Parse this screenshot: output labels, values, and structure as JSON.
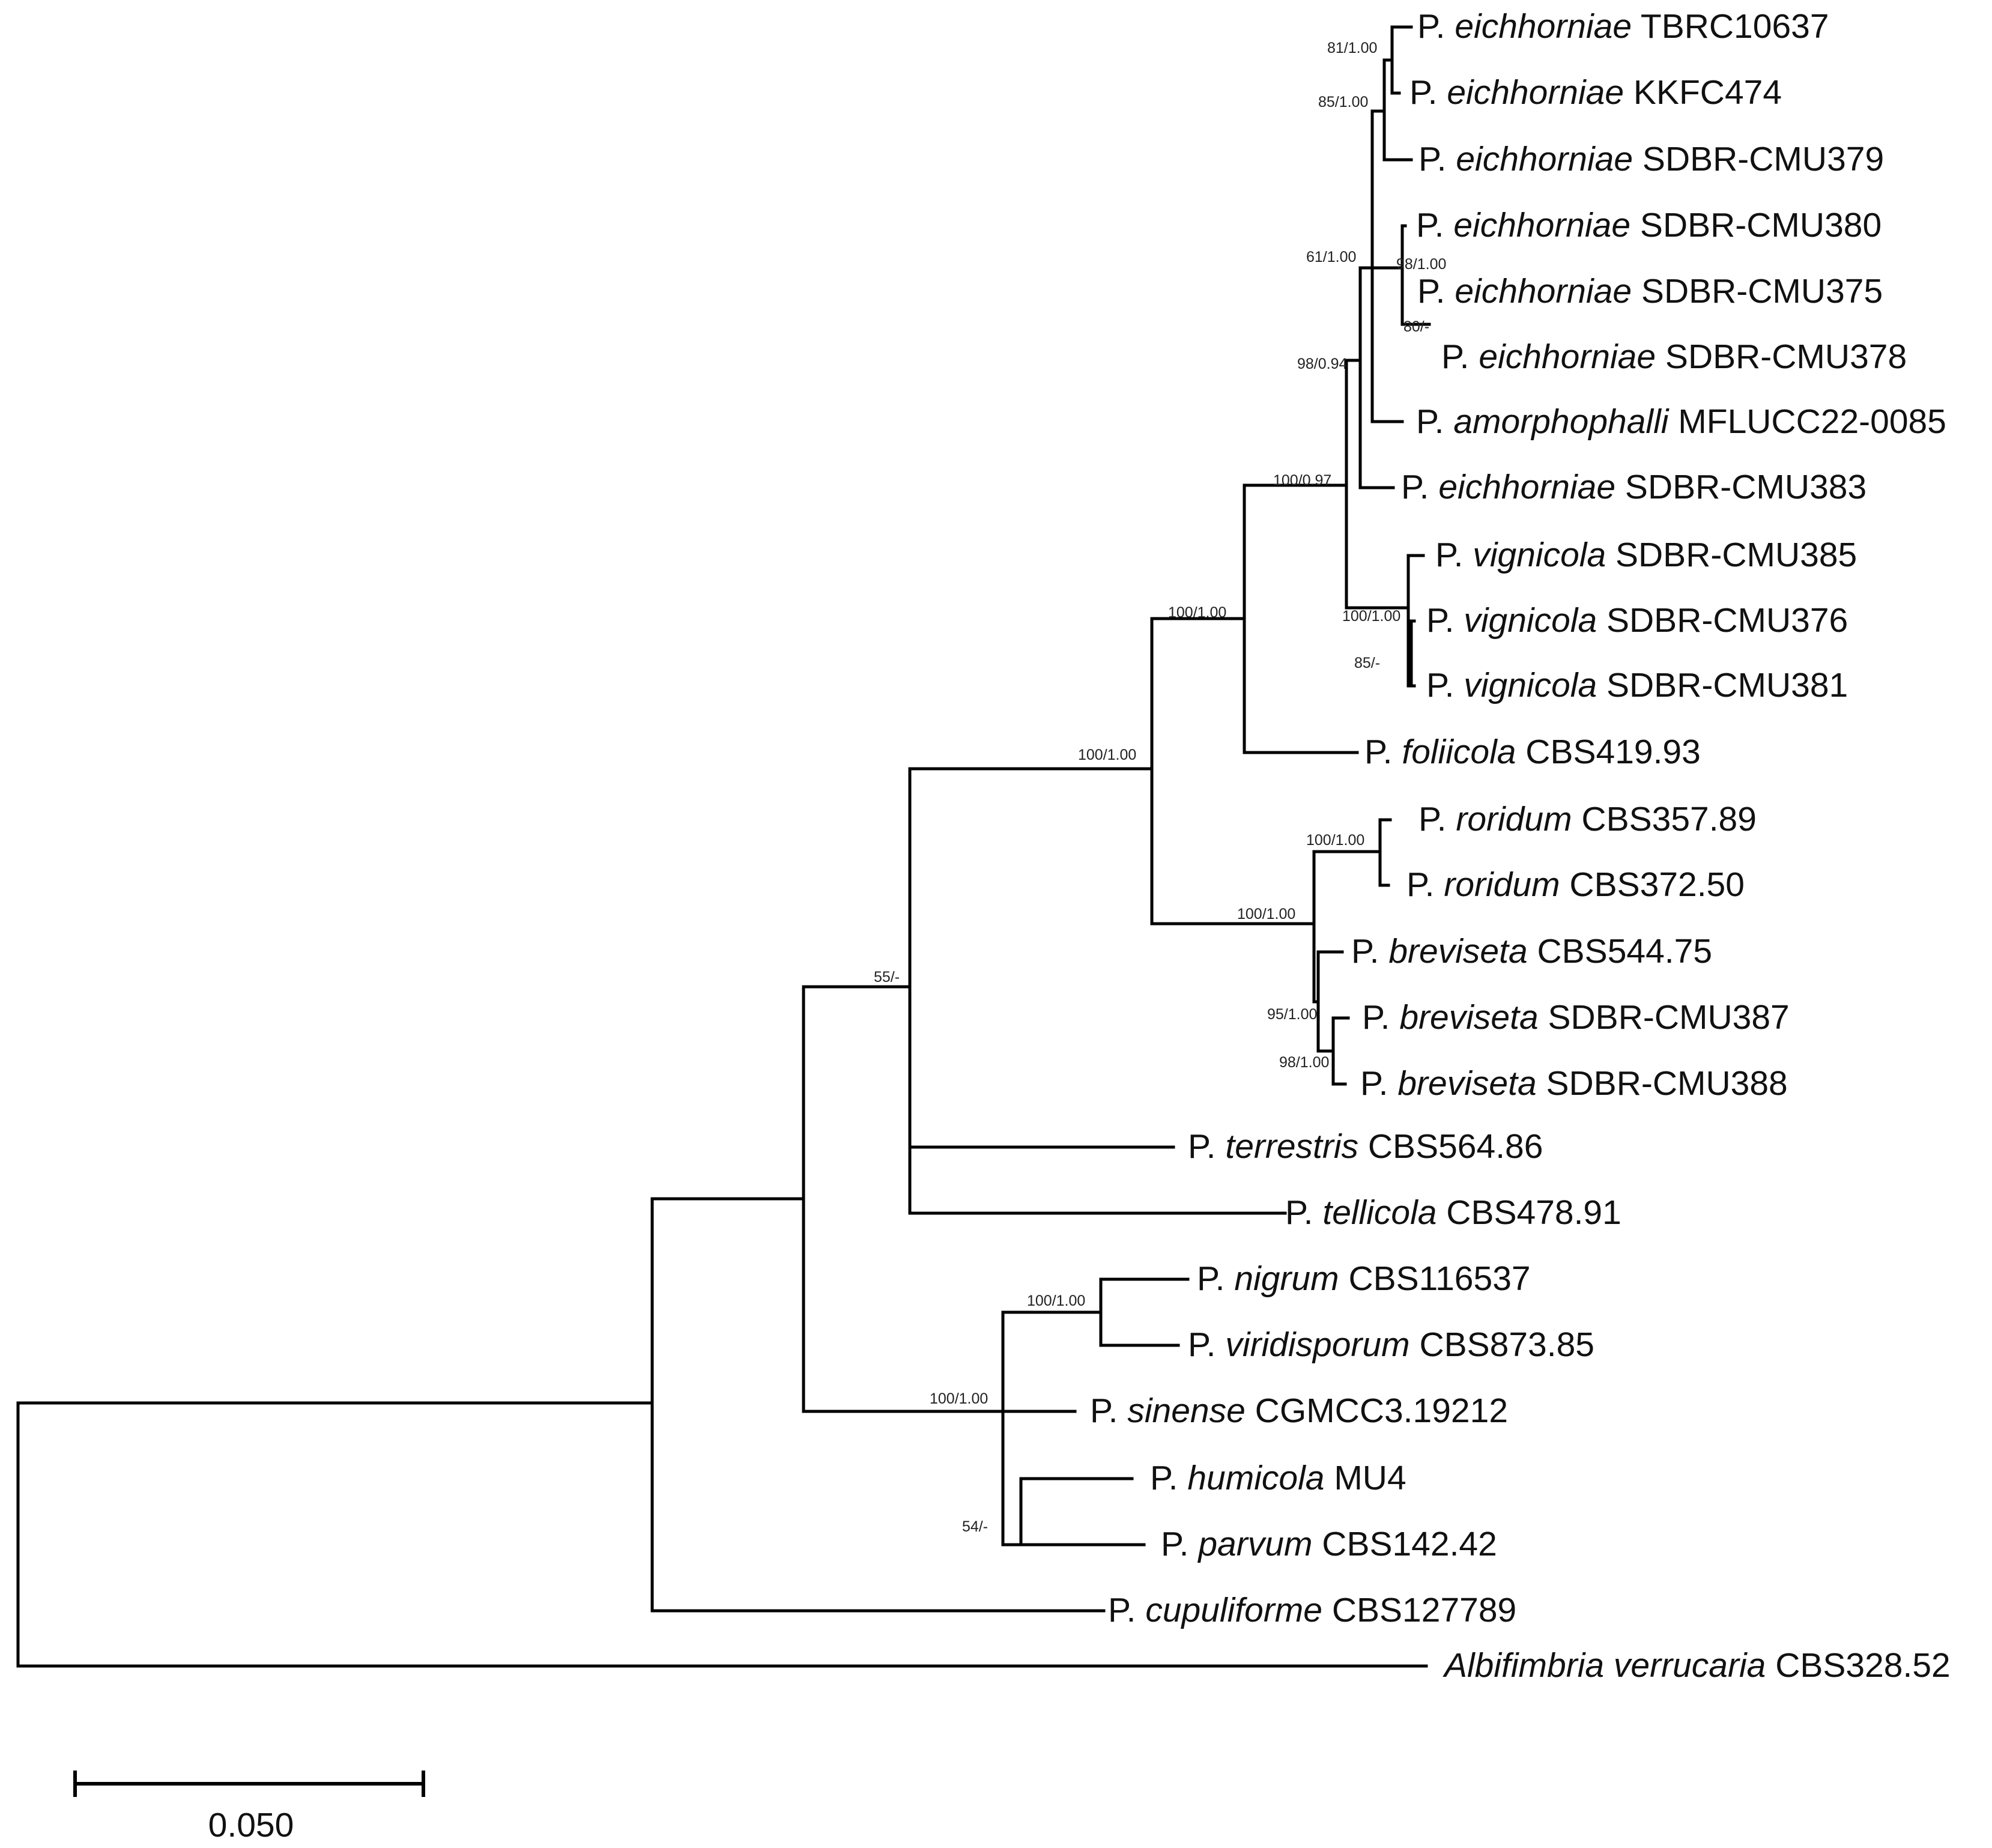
{
  "figure": {
    "type": "phylogenetic-tree",
    "scale_bar": {
      "value": 0.05,
      "label": "0.050"
    },
    "taxa": [
      {
        "id": "t1",
        "genus": "P.",
        "species": "eichhorniae",
        "strain": "TBRC10637"
      },
      {
        "id": "t2",
        "genus": "P.",
        "species": "eichhorniae",
        "strain": "KKFC474"
      },
      {
        "id": "t3",
        "genus": "P.",
        "species": "eichhorniae",
        "strain": "SDBR-CMU379"
      },
      {
        "id": "t4",
        "genus": "P.",
        "species": "eichhorniae",
        "strain": "SDBR-CMU380"
      },
      {
        "id": "t5",
        "genus": "P.",
        "species": "eichhorniae",
        "strain": "SDBR-CMU375"
      },
      {
        "id": "t6",
        "genus": "P.",
        "species": "eichhorniae",
        "strain": "SDBR-CMU378"
      },
      {
        "id": "t7",
        "genus": "P.",
        "species": "amorphophalli",
        "strain": "MFLUCC22-0085"
      },
      {
        "id": "t8",
        "genus": "P.",
        "species": "eichhorniae",
        "strain": "SDBR-CMU383"
      },
      {
        "id": "t9",
        "genus": "P.",
        "species": "vignicola",
        "strain": "SDBR-CMU385"
      },
      {
        "id": "t10",
        "genus": "P.",
        "species": "vignicola",
        "strain": "SDBR-CMU376"
      },
      {
        "id": "t11",
        "genus": "P.",
        "species": "vignicola",
        "strain": "SDBR-CMU381"
      },
      {
        "id": "t12",
        "genus": "P.",
        "species": "foliicola",
        "strain": "CBS419.93"
      },
      {
        "id": "t13",
        "genus": "P.",
        "species": "roridum",
        "strain": "CBS357.89"
      },
      {
        "id": "t14",
        "genus": "P.",
        "species": "roridum",
        "strain": "CBS372.50"
      },
      {
        "id": "t15",
        "genus": "P.",
        "species": "breviseta",
        "strain": "CBS544.75"
      },
      {
        "id": "t16",
        "genus": "P.",
        "species": "breviseta",
        "strain": "SDBR-CMU387"
      },
      {
        "id": "t17",
        "genus": "P.",
        "species": "breviseta",
        "strain": "SDBR-CMU388"
      },
      {
        "id": "t18",
        "genus": "P.",
        "species": "terrestris",
        "strain": "CBS564.86"
      },
      {
        "id": "t19",
        "genus": "P.",
        "species": "tellicola",
        "strain": "CBS478.91"
      },
      {
        "id": "t20",
        "genus": "P.",
        "species": "nigrum",
        "strain": "CBS116537"
      },
      {
        "id": "t21",
        "genus": "P.",
        "species": "viridisporum",
        "strain": "CBS873.85"
      },
      {
        "id": "t22",
        "genus": "P.",
        "species": "sinense",
        "strain": "CGMCC3.19212"
      },
      {
        "id": "t23",
        "genus": "P.",
        "species": "humicola",
        "strain": "MU4"
      },
      {
        "id": "t24",
        "genus": "P.",
        "species": "parvum",
        "strain": "CBS142.42"
      },
      {
        "id": "t25",
        "genus": "P.",
        "species": "cupuliforme",
        "strain": "CBS127789"
      },
      {
        "id": "t26",
        "genus": "Albifimbria",
        "species": "verrucaria",
        "strain": "CBS328.52"
      }
    ],
    "support_values": [
      {
        "id": "n_a",
        "label": "81/1.00"
      },
      {
        "id": "n_b",
        "label": "85/1.00"
      },
      {
        "id": "n_c",
        "label": "98/1.00"
      },
      {
        "id": "n_d",
        "label": "80/-"
      },
      {
        "id": "n_e",
        "label": "61/1.00"
      },
      {
        "id": "n_f",
        "label": "98/0.94"
      },
      {
        "id": "n_g",
        "label": "100/0.97"
      },
      {
        "id": "n_h",
        "label": "100/1.00"
      },
      {
        "id": "n_i",
        "label": "85/-"
      },
      {
        "id": "n_j",
        "label": "100/1.00"
      },
      {
        "id": "n_k",
        "label": "100/1.00"
      },
      {
        "id": "n_l",
        "label": "100/1.00"
      },
      {
        "id": "n_m",
        "label": "100/1.00"
      },
      {
        "id": "n_n",
        "label": "95/1.00"
      },
      {
        "id": "n_o",
        "label": "98/1.00"
      },
      {
        "id": "n_p",
        "label": "55/-"
      },
      {
        "id": "n_q",
        "label": "100/1.00"
      },
      {
        "id": "n_r",
        "label": "100/1.00"
      },
      {
        "id": "n_s",
        "label": "54/-"
      }
    ]
  }
}
